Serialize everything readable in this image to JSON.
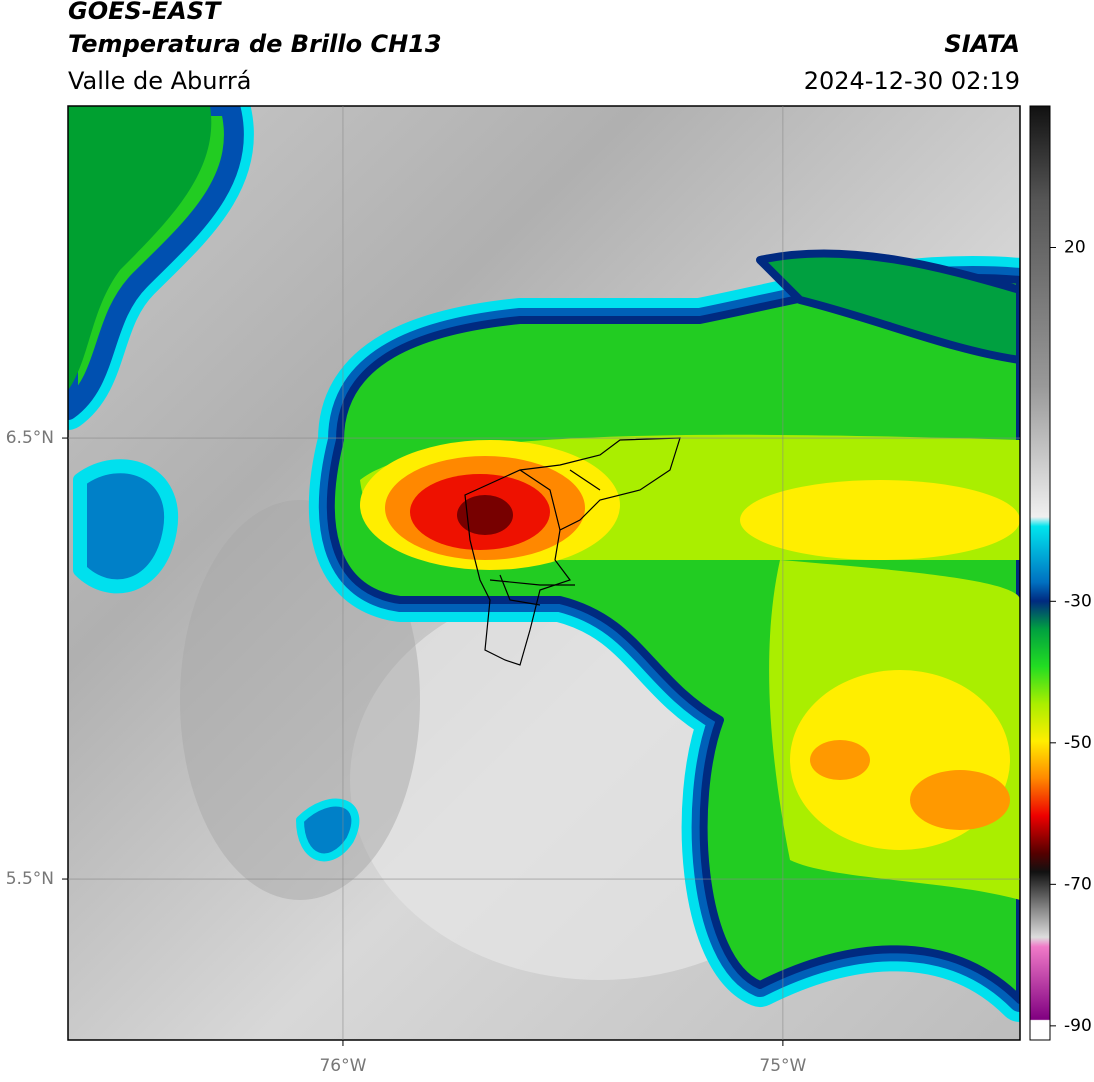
{
  "header": {
    "title": "GOES-EAST",
    "subtitle": "Temperatura de Brillo CH13",
    "region": "Valle de Aburrá",
    "source": "SIATA",
    "datetime": "2024-12-30 02:19"
  },
  "map": {
    "xlim": [
      -76.625,
      -74.461
    ],
    "ylim": [
      5.135,
      7.253
    ],
    "xticks": [
      {
        "value": -76,
        "label": "76°W"
      },
      {
        "value": -75,
        "label": "75°W"
      }
    ],
    "yticks": [
      {
        "value": 6.5,
        "label": "6.5°N"
      },
      {
        "value": 5.5,
        "label": "5.5°N"
      }
    ],
    "grid": true
  },
  "colorbar": {
    "lim": [
      -92,
      40
    ],
    "ticks": [
      20,
      -30,
      -50,
      -70,
      -90
    ]
  }
}
